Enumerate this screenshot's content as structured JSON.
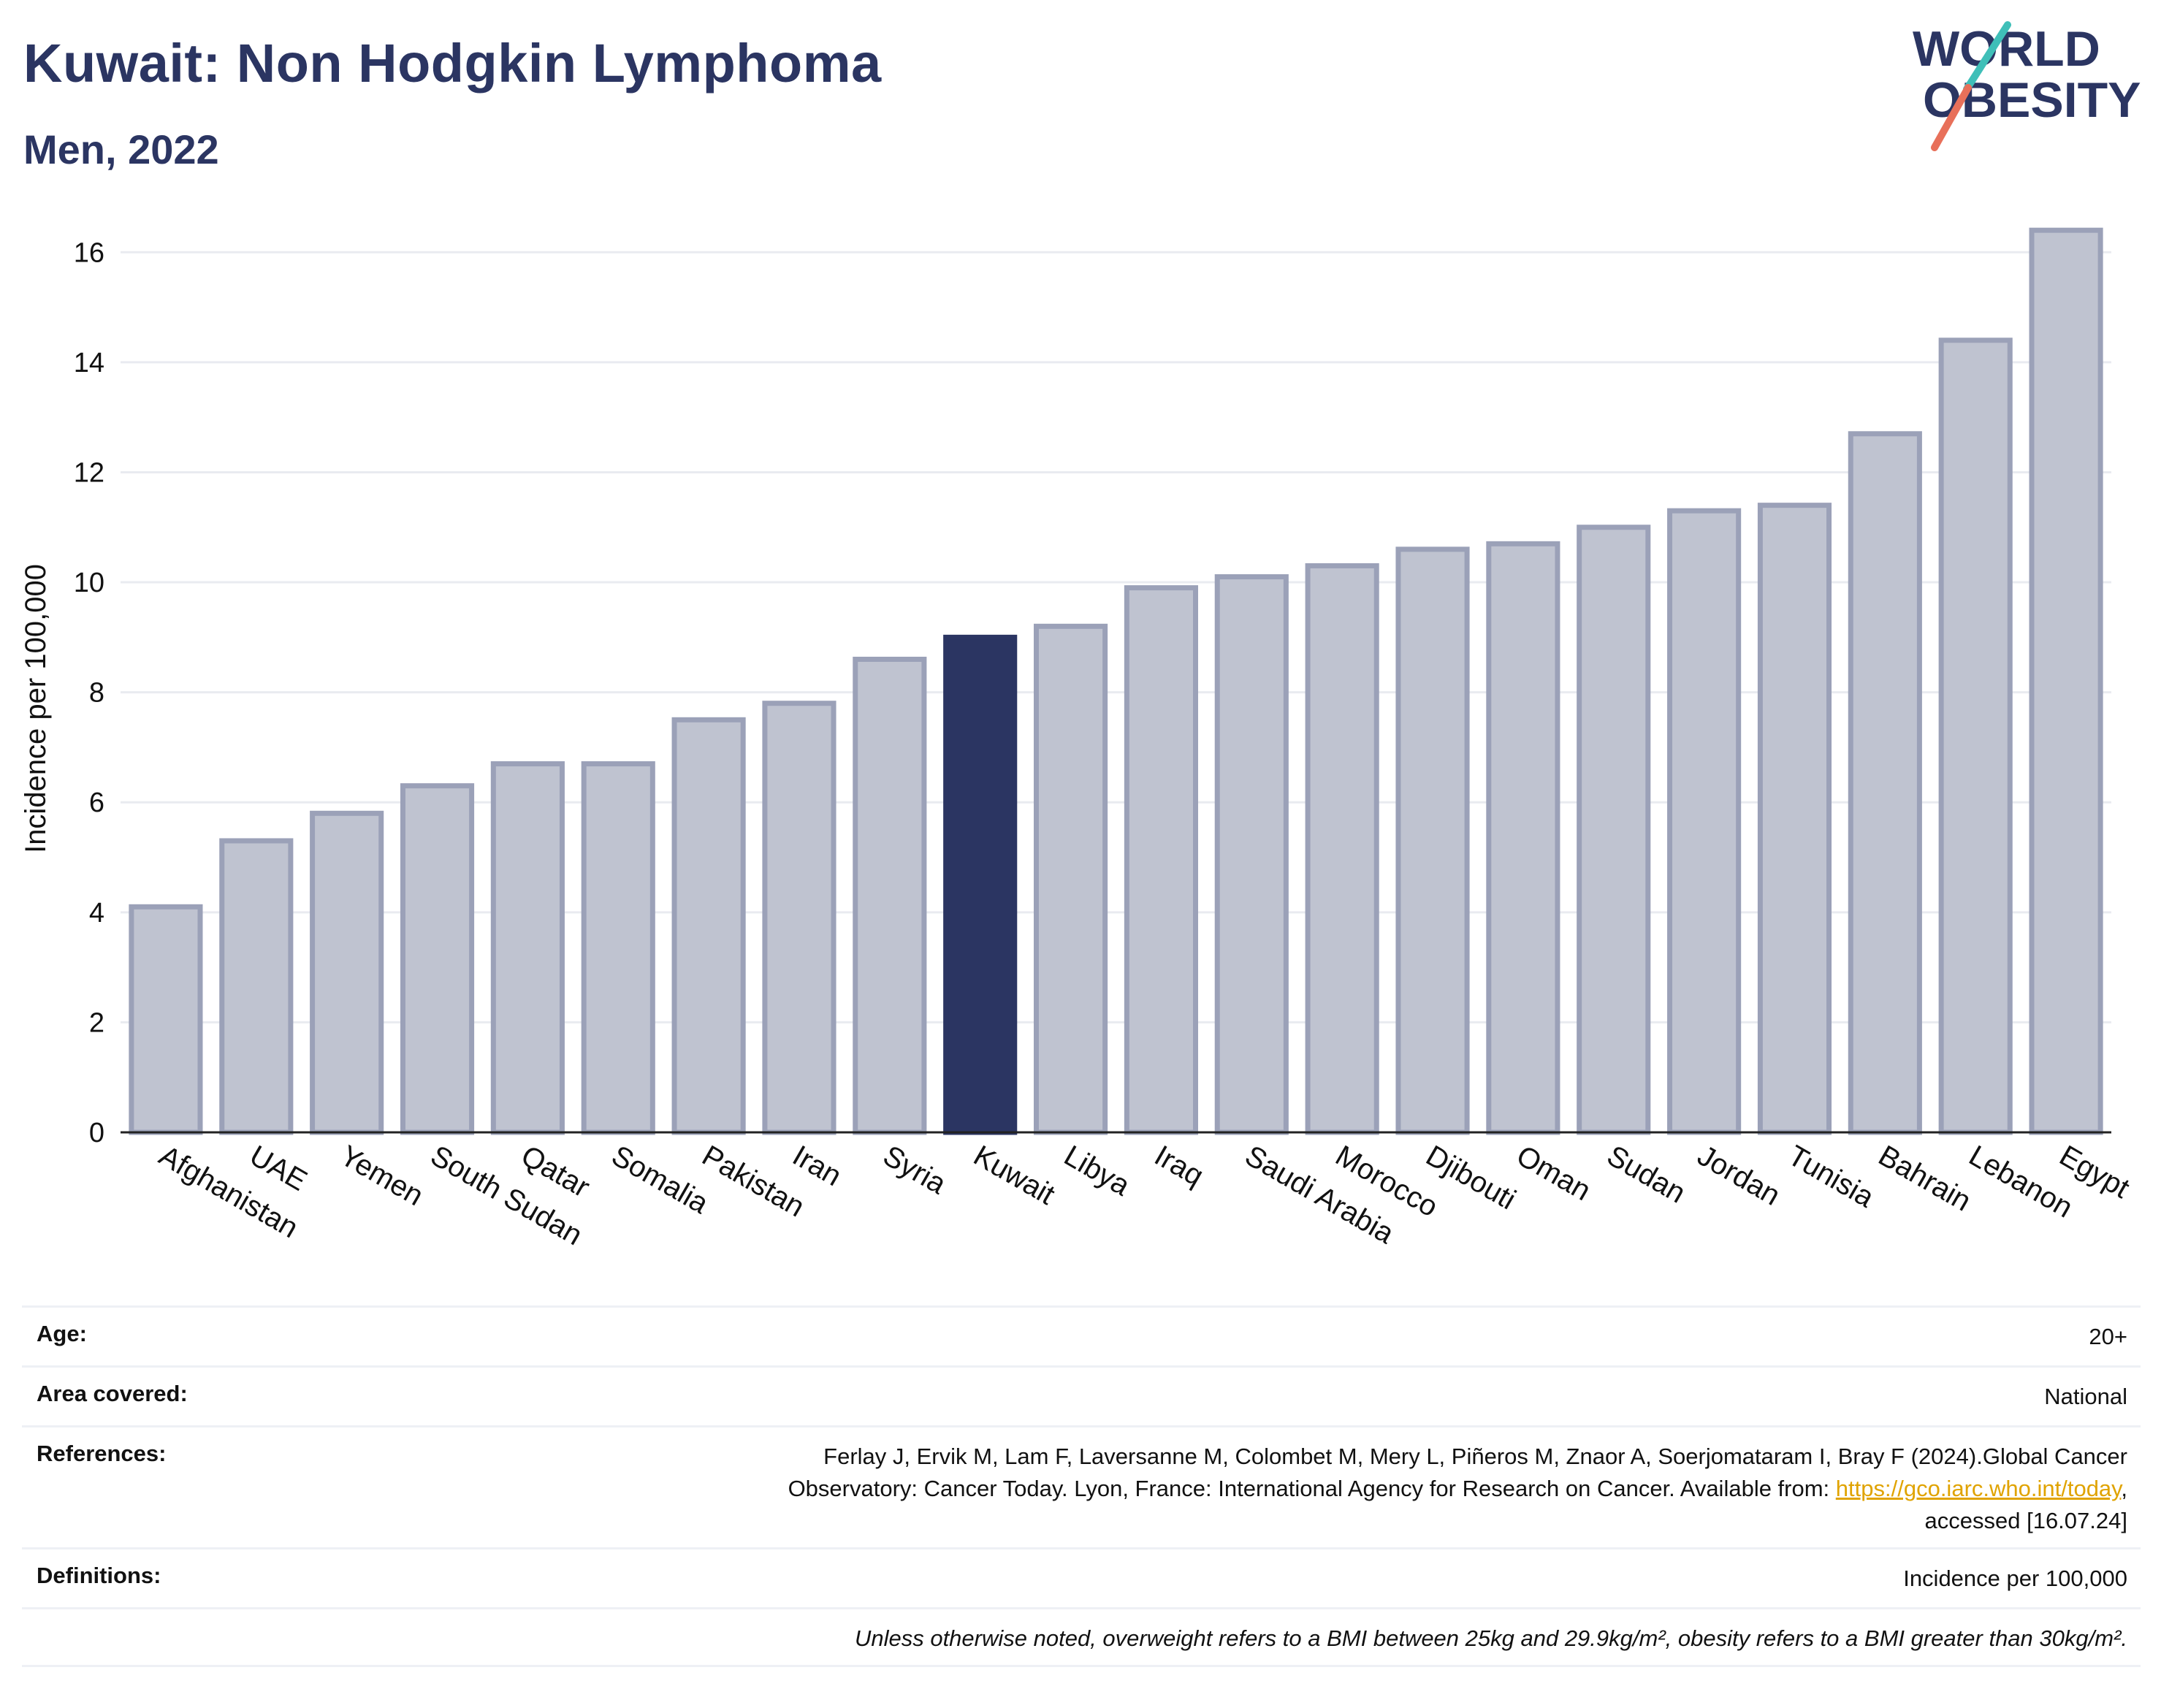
{
  "header": {
    "title": "Kuwait: Non Hodgkin Lymphoma",
    "subtitle": "Men, 2022"
  },
  "logo": {
    "line1": "WORLD",
    "line2": "OBESITY",
    "colors": {
      "text": "#2b3562",
      "slash_teal": "#3fbfb8",
      "slash_coral": "#e8705a"
    }
  },
  "chart_data": {
    "type": "bar",
    "title": "",
    "xlabel": "",
    "ylabel": "Incidence per 100,000",
    "ylim": [
      0,
      17
    ],
    "yticks": [
      0,
      2,
      4,
      6,
      8,
      10,
      12,
      14,
      16
    ],
    "grid": true,
    "highlight": "Kuwait",
    "colors": {
      "bar": "#bfc3d0",
      "bar_border": "#9ba1b8",
      "highlight": "#2b3562",
      "grid": "#e9ebf0"
    },
    "categories": [
      "Afghanistan",
      "UAE",
      "Yemen",
      "South Sudan",
      "Qatar",
      "Somalia",
      "Pakistan",
      "Iran",
      "Syria",
      "Kuwait",
      "Libya",
      "Iraq",
      "Saudi Arabia",
      "Morocco",
      "Djibouti",
      "Oman",
      "Sudan",
      "Jordan",
      "Tunisia",
      "Bahrain",
      "Lebanon",
      "Egypt"
    ],
    "values": [
      4.1,
      5.3,
      5.8,
      6.3,
      6.7,
      6.7,
      7.5,
      7.8,
      8.6,
      9.0,
      9.2,
      9.9,
      10.1,
      10.3,
      10.6,
      10.7,
      11.0,
      11.3,
      11.4,
      12.7,
      14.4,
      16.4
    ]
  },
  "info": {
    "age": {
      "label": "Age:",
      "value": "20+"
    },
    "area": {
      "label": "Area covered:",
      "value": "National"
    },
    "references": {
      "label": "References:",
      "line1": "Ferlay J, Ervik M, Lam F, Laversanne M, Colombet M, Mery L, Piñeros M, Znaor A, Soerjomataram I, Bray F (2024).Global Cancer",
      "line2": "Observatory: Cancer Today. Lyon, France: International Agency for Research on Cancer. Available from: ",
      "link": "https://gco.iarc.who.int/today",
      "line2_tail": ",",
      "line3": "accessed [16.07.24]"
    },
    "definitions": {
      "label": "Definitions:",
      "value": "Incidence per 100,000"
    },
    "note": "Unless otherwise noted, overweight refers to a BMI between 25kg and 29.9kg/m², obesity refers to a BMI greater than 30kg/m²."
  }
}
